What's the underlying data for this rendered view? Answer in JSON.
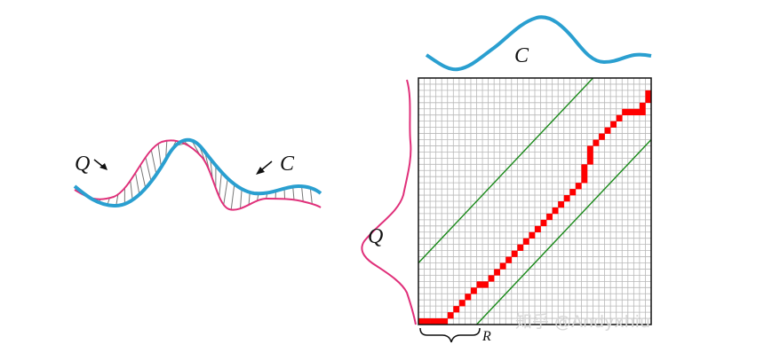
{
  "labels": {
    "query_left": "Q",
    "candidate_left": "C",
    "candidate_top": "C",
    "query_side": "Q",
    "window": "R"
  },
  "watermark": "知乎 @Andyxhiu",
  "colors": {
    "query_curve": "#e0307a",
    "candidate_curve": "#2a9fd0",
    "grid": "#b8b8b8",
    "warping_path": "#ff0000",
    "window_band": "#1a8a1a",
    "hatch": "#777777",
    "text": "#111111"
  },
  "grid": {
    "cells": 40
  },
  "warping_path_cells": [
    [
      0,
      0
    ],
    [
      1,
      0
    ],
    [
      2,
      0
    ],
    [
      3,
      0
    ],
    [
      4,
      0
    ],
    [
      5,
      1
    ],
    [
      6,
      2
    ],
    [
      7,
      3
    ],
    [
      8,
      4
    ],
    [
      9,
      5
    ],
    [
      10,
      6
    ],
    [
      11,
      6
    ],
    [
      12,
      7
    ],
    [
      13,
      8
    ],
    [
      14,
      9
    ],
    [
      15,
      10
    ],
    [
      16,
      11
    ],
    [
      17,
      12
    ],
    [
      18,
      13
    ],
    [
      19,
      14
    ],
    [
      20,
      15
    ],
    [
      21,
      16
    ],
    [
      22,
      17
    ],
    [
      23,
      18
    ],
    [
      24,
      19
    ],
    [
      25,
      20
    ],
    [
      26,
      21
    ],
    [
      27,
      22
    ],
    [
      28,
      23
    ],
    [
      28,
      24
    ],
    [
      28,
      25
    ],
    [
      29,
      26
    ],
    [
      29,
      27
    ],
    [
      29,
      28
    ],
    [
      30,
      29
    ],
    [
      31,
      30
    ],
    [
      32,
      31
    ],
    [
      33,
      32
    ],
    [
      34,
      33
    ],
    [
      35,
      34
    ],
    [
      36,
      34
    ],
    [
      37,
      34
    ],
    [
      38,
      34
    ],
    [
      38,
      35
    ],
    [
      39,
      36
    ],
    [
      39,
      37
    ]
  ],
  "window_band_offset_cells": 10
}
